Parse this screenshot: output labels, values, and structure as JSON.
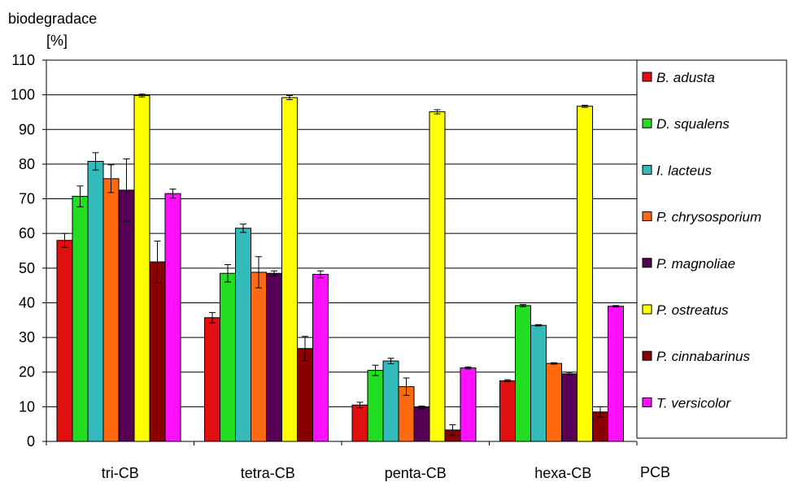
{
  "chart_data": {
    "type": "bar",
    "ylabel_line1": "biodegradace",
    "ylabel_line2": "[%]",
    "xlabel": "PCB",
    "ylim": [
      0,
      110
    ],
    "yticks": [
      0,
      10,
      20,
      30,
      40,
      50,
      60,
      70,
      80,
      90,
      100,
      110
    ],
    "grid": true,
    "legend_position": "right",
    "categories": [
      "tri-CB",
      "tetra-CB",
      "penta-CB",
      "hexa-CB"
    ],
    "series": [
      {
        "name": "B. adusta",
        "color": "#e01010",
        "values": [
          58,
          35.7,
          10.5,
          17.5
        ],
        "errors": [
          2.0,
          1.5,
          0.8,
          0.3
        ]
      },
      {
        "name": "D. squalens",
        "color": "#22dd22",
        "values": [
          70.7,
          48.5,
          20.5,
          39.2
        ],
        "errors": [
          3.0,
          2.5,
          1.5,
          0.3
        ]
      },
      {
        "name": "I. lacteus",
        "color": "#33bbbb",
        "values": [
          80.8,
          61.5,
          23.2,
          33.5
        ],
        "errors": [
          2.5,
          1.2,
          0.8,
          0.2
        ]
      },
      {
        "name": "P. chrysosporium",
        "color": "#ff6a10",
        "values": [
          75.8,
          48.8,
          15.8,
          22.5
        ],
        "errors": [
          4.0,
          4.5,
          2.5,
          0.2
        ]
      },
      {
        "name": "P. magnoliae",
        "color": "#550055",
        "values": [
          72.5,
          48.5,
          9.8,
          19.5
        ],
        "errors": [
          9.0,
          0.7,
          0.4,
          0.4
        ]
      },
      {
        "name": "P. ostreatus",
        "color": "#ffff00",
        "values": [
          99.8,
          99.2,
          95.1,
          96.7
        ],
        "errors": [
          0.4,
          0.6,
          0.6,
          0.3
        ]
      },
      {
        "name": "P. cinnabarinus",
        "color": "#880000",
        "values": [
          51.8,
          26.8,
          3.3,
          8.5
        ],
        "errors": [
          6.0,
          3.5,
          1.5,
          1.5
        ]
      },
      {
        "name": "T. versicolor",
        "color": "#ff10ff",
        "values": [
          71.5,
          48.2,
          21.2,
          39
        ],
        "errors": [
          1.3,
          1.0,
          0.3,
          0.2
        ]
      }
    ]
  }
}
